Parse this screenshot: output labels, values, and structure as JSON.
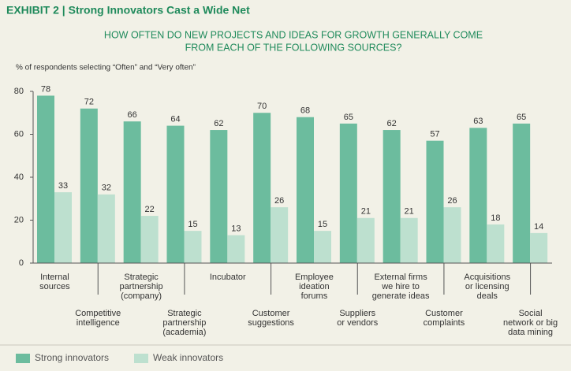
{
  "chart_data": {
    "type": "bar",
    "title": "EXHIBIT 2 | Strong Innovators Cast a Wide Net",
    "subtitle": [
      "HOW OFTEN DO NEW PROJECTS AND IDEAS FOR GROWTH GENERALLY COME",
      "FROM EACH OF THE FOLLOWING SOURCES?"
    ],
    "y_axis_label": "% of respondents selecting “Often” and “Very often”",
    "categories": [
      [
        "Internal",
        "sources"
      ],
      [
        "Competitive",
        "intelligence"
      ],
      [
        "Strategic",
        "partnership",
        "(company)"
      ],
      [
        "Strategic",
        "partnership",
        "(academia)"
      ],
      [
        "Incubator"
      ],
      [
        "Customer",
        "suggestions"
      ],
      [
        "Employee",
        "ideation",
        "forums"
      ],
      [
        "Suppliers",
        "or vendors"
      ],
      [
        "External firms",
        "we hire to",
        "generate ideas"
      ],
      [
        "Customer",
        "complaints"
      ],
      [
        "Acquisitions",
        "or licensing",
        "deals"
      ],
      [
        "Social",
        "network or big",
        "data mining"
      ]
    ],
    "series": [
      {
        "name": "Strong innovators",
        "color": "#6cbc9e",
        "values": [
          78,
          72,
          66,
          64,
          62,
          70,
          68,
          65,
          62,
          57,
          63,
          65
        ]
      },
      {
        "name": "Weak innovators",
        "color": "#bde0cf",
        "values": [
          33,
          32,
          22,
          15,
          13,
          26,
          15,
          21,
          21,
          26,
          18,
          14
        ]
      }
    ],
    "ylim": [
      0,
      80
    ],
    "yticks": [
      0,
      20,
      40,
      60,
      80
    ]
  }
}
